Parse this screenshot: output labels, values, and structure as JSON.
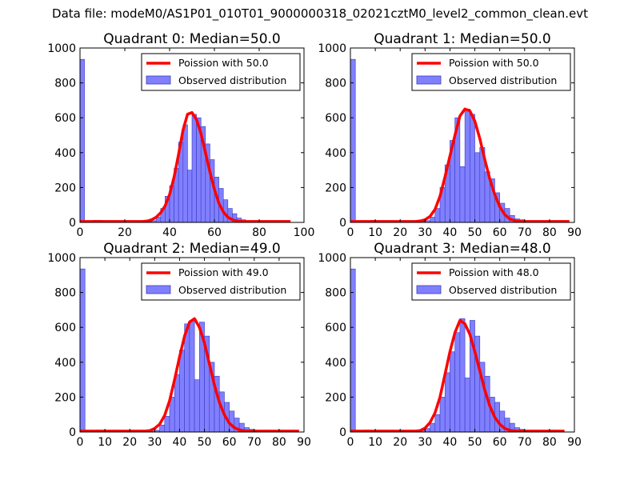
{
  "suptitle": "Data file: modeM0/AS1P01_010T01_9000000318_02021cztM0_level2_common_clean.evt",
  "colors": {
    "hist_fill": "#8080ff",
    "hist_edge": "#3a3ac0",
    "poisson": "#ff0000",
    "axis": "#000000"
  },
  "chart_data": [
    {
      "type": "bar+line",
      "title": "Quadrant 0: Median=50.0",
      "legend": [
        "Poission with 50.0",
        "Observed distribution"
      ],
      "legend_position": "top-right",
      "xlim": [
        0,
        100
      ],
      "ylim": [
        0,
        1000
      ],
      "xticks": [
        0,
        20,
        40,
        60,
        80,
        100
      ],
      "yticks": [
        0,
        200,
        400,
        600,
        800,
        1000
      ],
      "bin_width": 2,
      "bins": [
        0,
        2,
        4,
        6,
        8,
        10,
        12,
        14,
        16,
        18,
        20,
        22,
        24,
        26,
        28,
        30,
        32,
        34,
        36,
        38,
        40,
        42,
        44,
        46,
        48,
        50,
        52,
        54,
        56,
        58,
        60,
        62,
        64,
        66,
        68,
        70,
        72,
        74,
        76,
        78,
        80,
        82,
        84,
        86,
        88,
        90,
        92
      ],
      "counts": [
        935,
        2,
        2,
        12,
        12,
        5,
        5,
        1,
        1,
        1,
        0,
        0,
        0,
        0,
        0,
        5,
        10,
        30,
        80,
        150,
        210,
        310,
        460,
        560,
        300,
        620,
        600,
        550,
        450,
        360,
        260,
        195,
        130,
        80,
        50,
        25,
        15,
        10,
        5,
        3,
        2,
        1,
        1,
        0,
        0,
        0,
        0
      ],
      "poisson_x": [
        0,
        2,
        4,
        6,
        8,
        10,
        12,
        14,
        16,
        18,
        20,
        22,
        24,
        26,
        28,
        30,
        32,
        34,
        36,
        38,
        40,
        42,
        44,
        46,
        48,
        50,
        52,
        54,
        56,
        58,
        60,
        62,
        64,
        66,
        68,
        70,
        72,
        74,
        76,
        78,
        80,
        82,
        84,
        86,
        88,
        90,
        92,
        94
      ],
      "poisson_y": [
        5,
        5,
        5,
        5,
        5,
        5,
        5,
        5,
        5,
        5,
        5,
        5,
        5,
        5,
        5,
        8,
        15,
        30,
        55,
        95,
        160,
        260,
        390,
        530,
        620,
        630,
        590,
        510,
        400,
        290,
        190,
        110,
        60,
        30,
        15,
        8,
        6,
        5,
        5,
        5,
        5,
        5,
        5,
        5,
        5,
        5,
        5,
        5
      ]
    },
    {
      "type": "bar+line",
      "title": "Quadrant 1: Median=50.0",
      "legend": [
        "Poission with 50.0",
        "Observed distribution"
      ],
      "legend_position": "top-right",
      "xlim": [
        0,
        90
      ],
      "ylim": [
        0,
        1000
      ],
      "xticks": [
        0,
        10,
        20,
        30,
        40,
        50,
        60,
        70,
        80,
        90
      ],
      "yticks": [
        0,
        200,
        400,
        600,
        800,
        1000
      ],
      "bin_width": 2,
      "bins": [
        0,
        2,
        4,
        6,
        8,
        10,
        12,
        14,
        16,
        18,
        20,
        22,
        24,
        26,
        28,
        30,
        32,
        34,
        36,
        38,
        40,
        42,
        44,
        46,
        48,
        50,
        52,
        54,
        56,
        58,
        60,
        62,
        64,
        66,
        68,
        70,
        72,
        74,
        76,
        78,
        80,
        82,
        84,
        86
      ],
      "counts": [
        935,
        2,
        2,
        2,
        12,
        5,
        2,
        1,
        1,
        1,
        0,
        0,
        0,
        0,
        5,
        10,
        30,
        80,
        200,
        330,
        470,
        600,
        320,
        650,
        620,
        400,
        430,
        290,
        250,
        170,
        110,
        80,
        40,
        20,
        15,
        10,
        5,
        2,
        1,
        1,
        0,
        0,
        0,
        0
      ],
      "poisson_x": [
        0,
        2,
        4,
        6,
        8,
        10,
        12,
        14,
        16,
        18,
        20,
        22,
        24,
        26,
        28,
        30,
        32,
        34,
        36,
        38,
        40,
        42,
        44,
        46,
        48,
        50,
        52,
        54,
        56,
        58,
        60,
        62,
        64,
        66,
        68,
        70,
        72,
        74,
        76,
        78,
        80,
        82,
        84,
        86,
        88
      ],
      "poisson_y": [
        5,
        5,
        5,
        5,
        5,
        5,
        5,
        5,
        5,
        5,
        5,
        5,
        5,
        5,
        8,
        15,
        35,
        75,
        150,
        260,
        380,
        500,
        610,
        650,
        640,
        580,
        480,
        360,
        250,
        160,
        90,
        45,
        20,
        10,
        6,
        5,
        5,
        5,
        5,
        5,
        5,
        5,
        5,
        5,
        5
      ]
    },
    {
      "type": "bar+line",
      "title": "Quadrant 2: Median=49.0",
      "legend": [
        "Poission with 49.0",
        "Observed distribution"
      ],
      "legend_position": "top-right",
      "xlim": [
        0,
        90
      ],
      "ylim": [
        0,
        1000
      ],
      "xticks": [
        0,
        10,
        20,
        30,
        40,
        50,
        60,
        70,
        80,
        90
      ],
      "yticks": [
        0,
        200,
        400,
        600,
        800,
        1000
      ],
      "bin_width": 2,
      "bins": [
        0,
        2,
        4,
        6,
        8,
        10,
        12,
        14,
        16,
        18,
        20,
        22,
        24,
        26,
        28,
        30,
        32,
        34,
        36,
        38,
        40,
        42,
        44,
        46,
        48,
        50,
        52,
        54,
        56,
        58,
        60,
        62,
        64,
        66,
        68,
        70,
        72,
        74,
        76,
        78,
        80,
        82,
        84,
        86
      ],
      "counts": [
        935,
        2,
        2,
        12,
        5,
        5,
        10,
        2,
        1,
        1,
        0,
        0,
        0,
        0,
        5,
        10,
        40,
        90,
        200,
        330,
        470,
        620,
        640,
        300,
        630,
        550,
        400,
        320,
        230,
        170,
        120,
        80,
        50,
        25,
        15,
        10,
        5,
        2,
        1,
        1,
        0,
        0,
        0,
        0
      ],
      "poisson_x": [
        0,
        2,
        4,
        6,
        8,
        10,
        12,
        14,
        16,
        18,
        20,
        22,
        24,
        26,
        28,
        30,
        32,
        34,
        36,
        38,
        40,
        42,
        44,
        46,
        48,
        50,
        52,
        54,
        56,
        58,
        60,
        62,
        64,
        66,
        68,
        70,
        72,
        74,
        76,
        78,
        80,
        82,
        84,
        86,
        88
      ],
      "poisson_y": [
        5,
        5,
        5,
        5,
        5,
        5,
        5,
        5,
        5,
        5,
        5,
        5,
        5,
        5,
        8,
        20,
        45,
        95,
        180,
        300,
        430,
        550,
        630,
        650,
        600,
        510,
        390,
        270,
        170,
        100,
        50,
        25,
        12,
        7,
        5,
        5,
        5,
        5,
        5,
        5,
        5,
        5,
        5,
        5,
        5
      ]
    },
    {
      "type": "bar+line",
      "title": "Quadrant 3: Median=48.0",
      "legend": [
        "Poission with 48.0",
        "Observed distribution"
      ],
      "legend_position": "top-right",
      "xlim": [
        0,
        90
      ],
      "ylim": [
        0,
        1000
      ],
      "xticks": [
        0,
        10,
        20,
        30,
        40,
        50,
        60,
        70,
        80,
        90
      ],
      "yticks": [
        0,
        200,
        400,
        600,
        800,
        1000
      ],
      "bin_width": 2,
      "bins": [
        0,
        2,
        4,
        6,
        8,
        10,
        12,
        14,
        16,
        18,
        20,
        22,
        24,
        26,
        28,
        30,
        32,
        34,
        36,
        38,
        40,
        42,
        44,
        46,
        48,
        50,
        52,
        54,
        56,
        58,
        60,
        62,
        64,
        66,
        68,
        70,
        72,
        74,
        76,
        78,
        80,
        82,
        84
      ],
      "counts": [
        935,
        2,
        2,
        12,
        5,
        5,
        10,
        2,
        1,
        1,
        0,
        0,
        0,
        0,
        10,
        20,
        50,
        100,
        200,
        340,
        460,
        570,
        650,
        310,
        640,
        550,
        400,
        320,
        200,
        170,
        120,
        80,
        50,
        25,
        15,
        5,
        2,
        1,
        1,
        0,
        0,
        0,
        0
      ],
      "poisson_x": [
        0,
        2,
        4,
        6,
        8,
        10,
        12,
        14,
        16,
        18,
        20,
        22,
        24,
        26,
        28,
        30,
        32,
        34,
        36,
        38,
        40,
        42,
        44,
        46,
        48,
        50,
        52,
        54,
        56,
        58,
        60,
        62,
        64,
        66,
        68,
        70,
        72,
        74,
        76,
        78,
        80,
        82,
        84,
        86
      ],
      "poisson_y": [
        5,
        5,
        5,
        5,
        5,
        5,
        5,
        5,
        5,
        5,
        5,
        5,
        5,
        5,
        8,
        22,
        55,
        110,
        200,
        330,
        460,
        570,
        640,
        620,
        560,
        460,
        350,
        240,
        150,
        85,
        45,
        20,
        10,
        6,
        5,
        5,
        5,
        5,
        5,
        5,
        5,
        5,
        5,
        5
      ]
    }
  ]
}
